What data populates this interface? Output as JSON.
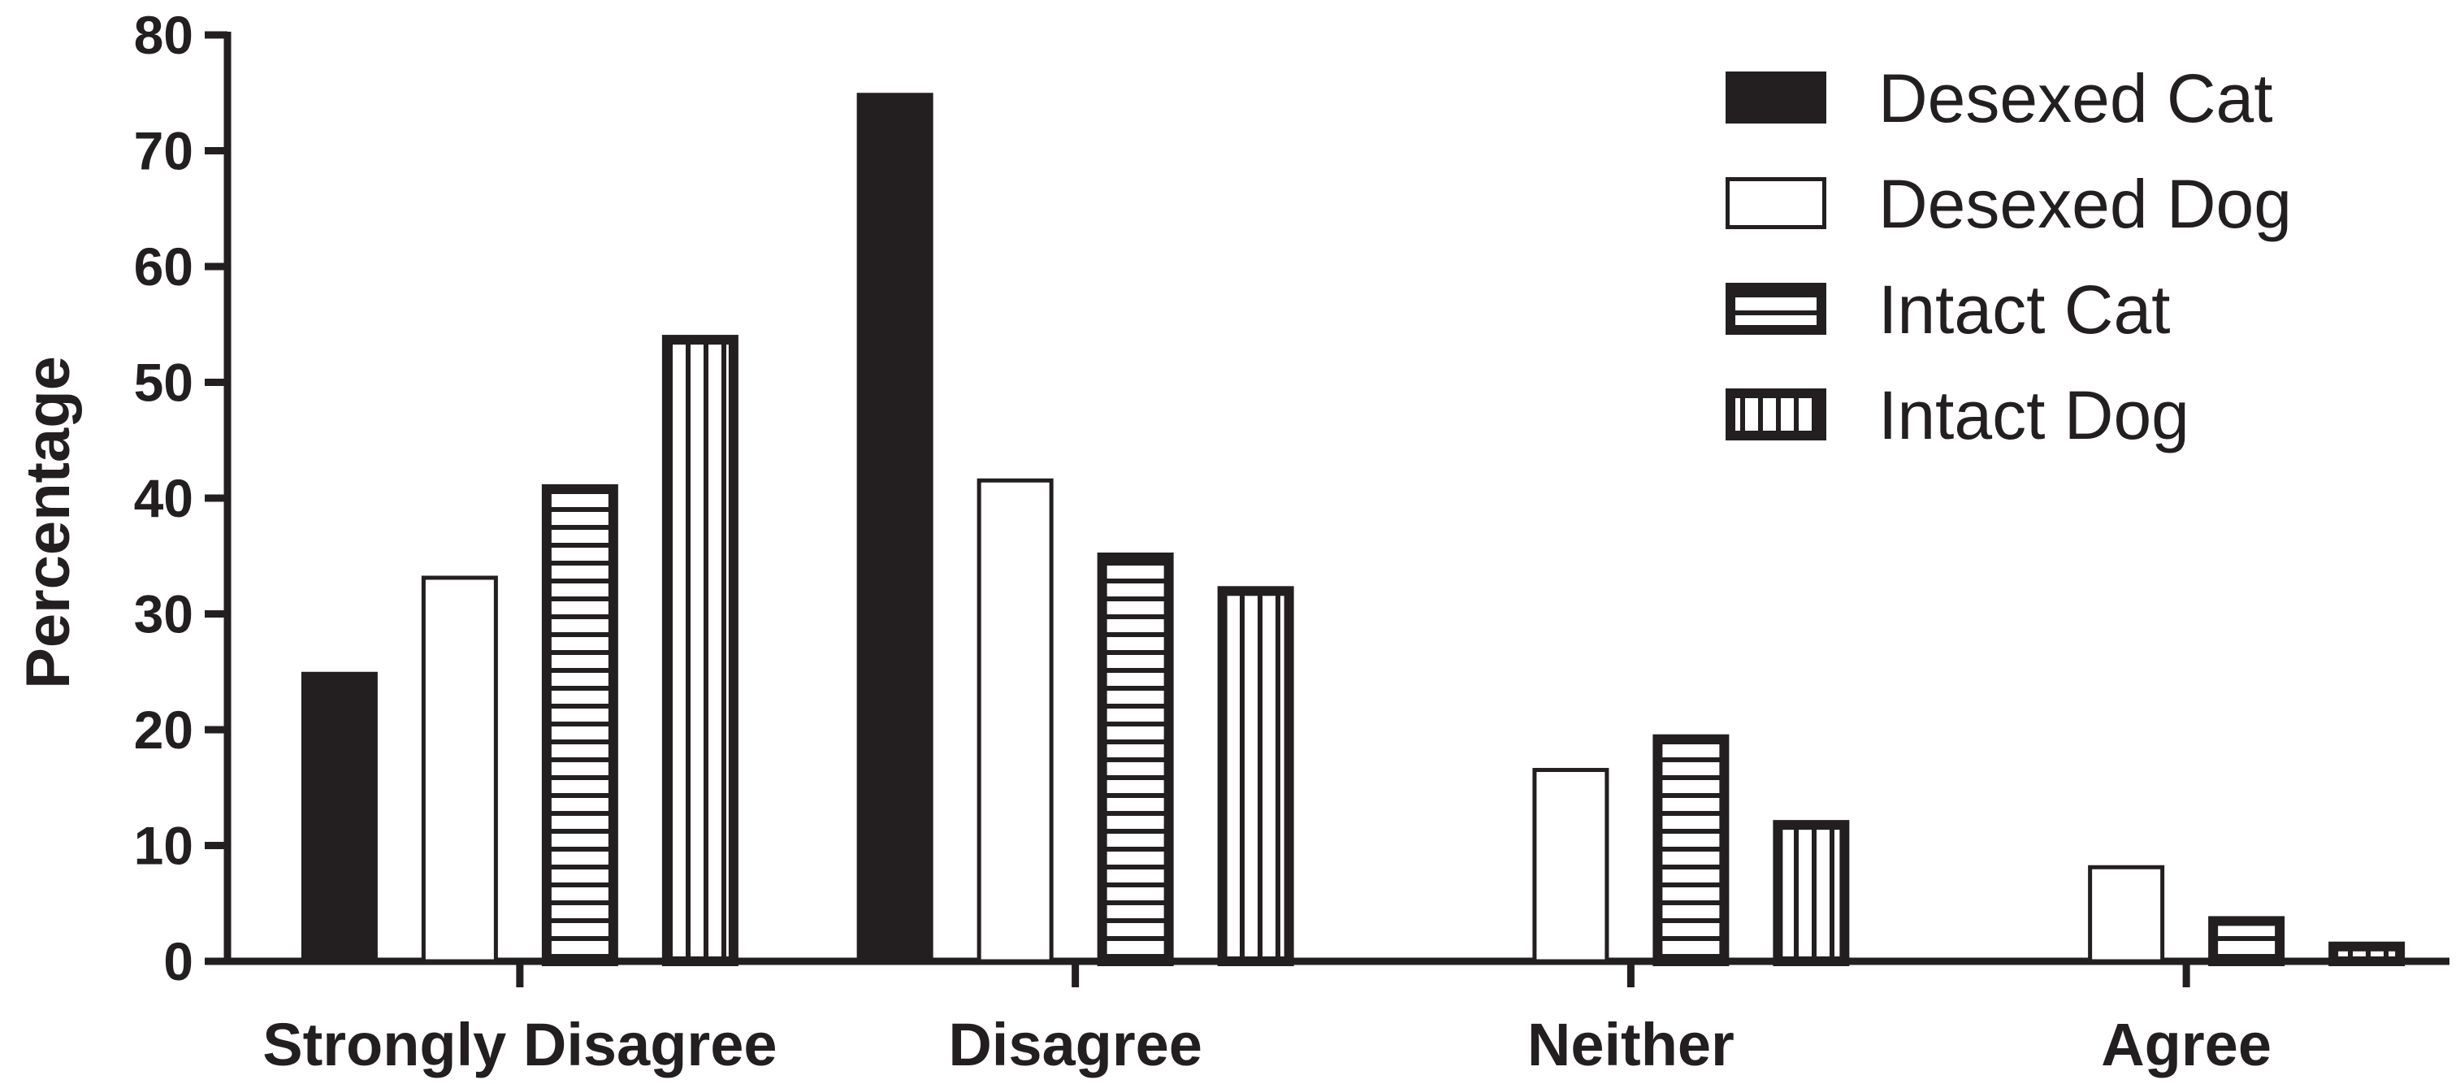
{
  "chart_data": {
    "type": "bar",
    "ylabel": "Percentage",
    "xlabel": "",
    "ylim": [
      0,
      80
    ],
    "yticks": [
      0,
      10,
      20,
      30,
      40,
      50,
      60,
      70,
      80
    ],
    "categories": [
      "Strongly Disagree",
      "Disagree",
      "Neither",
      "Agree"
    ],
    "legend_position": "top-right",
    "grid": false,
    "series": [
      {
        "name": "Desexed Cat",
        "values": [
          25,
          75,
          0,
          0
        ],
        "pattern": "solid",
        "color": "#231f20"
      },
      {
        "name": "Desexed Dog",
        "values": [
          33.3,
          41.7,
          16.7,
          8.3
        ],
        "pattern": "empty",
        "color": "#231f20"
      },
      {
        "name": "Intact Cat",
        "values": [
          41.2,
          35.3,
          19.6,
          3.9
        ],
        "pattern": "horizontal",
        "color": "#231f20"
      },
      {
        "name": "Intact Dog",
        "values": [
          54.1,
          32.4,
          12.2,
          1.7
        ],
        "pattern": "vertical",
        "color": "#231f20"
      }
    ]
  }
}
